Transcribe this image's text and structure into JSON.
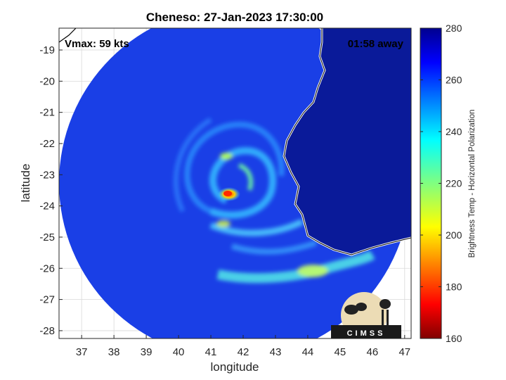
{
  "chart_data": {
    "type": "heatmap",
    "title": "Cheneso: 27-Jan-2023 17:30:00",
    "xlabel": "longitude",
    "ylabel": "latitude",
    "xlim": [
      36.3,
      47.2
    ],
    "ylim": [
      -28.25,
      -18.3
    ],
    "x_ticks": [
      37,
      38,
      39,
      40,
      41,
      42,
      43,
      44,
      45,
      46,
      47
    ],
    "y_ticks": [
      -19,
      -20,
      -21,
      -22,
      -23,
      -24,
      -25,
      -26,
      -27,
      -28
    ],
    "grid": true,
    "colorbar": {
      "label": "Brightness Temp - Horizontal Polarization",
      "range": [
        160,
        280
      ],
      "ticks": [
        160,
        180,
        200,
        220,
        240,
        260,
        280
      ],
      "colormap": "jet"
    },
    "annotations": {
      "left": "Vmax: 59 kts",
      "right": "01:58 away"
    },
    "coastline_color": "#ffffff",
    "swath_background_color": "#1a3fe6",
    "land_color": "#0a1a99",
    "features": [
      {
        "name": "eye",
        "lon": 41.5,
        "lat": -23.5,
        "value": 175
      },
      {
        "name": "rainband-southeast",
        "lon": 44.0,
        "lat": -26.1,
        "value": 225
      }
    ]
  },
  "logo": {
    "text": "CIMSS"
  }
}
